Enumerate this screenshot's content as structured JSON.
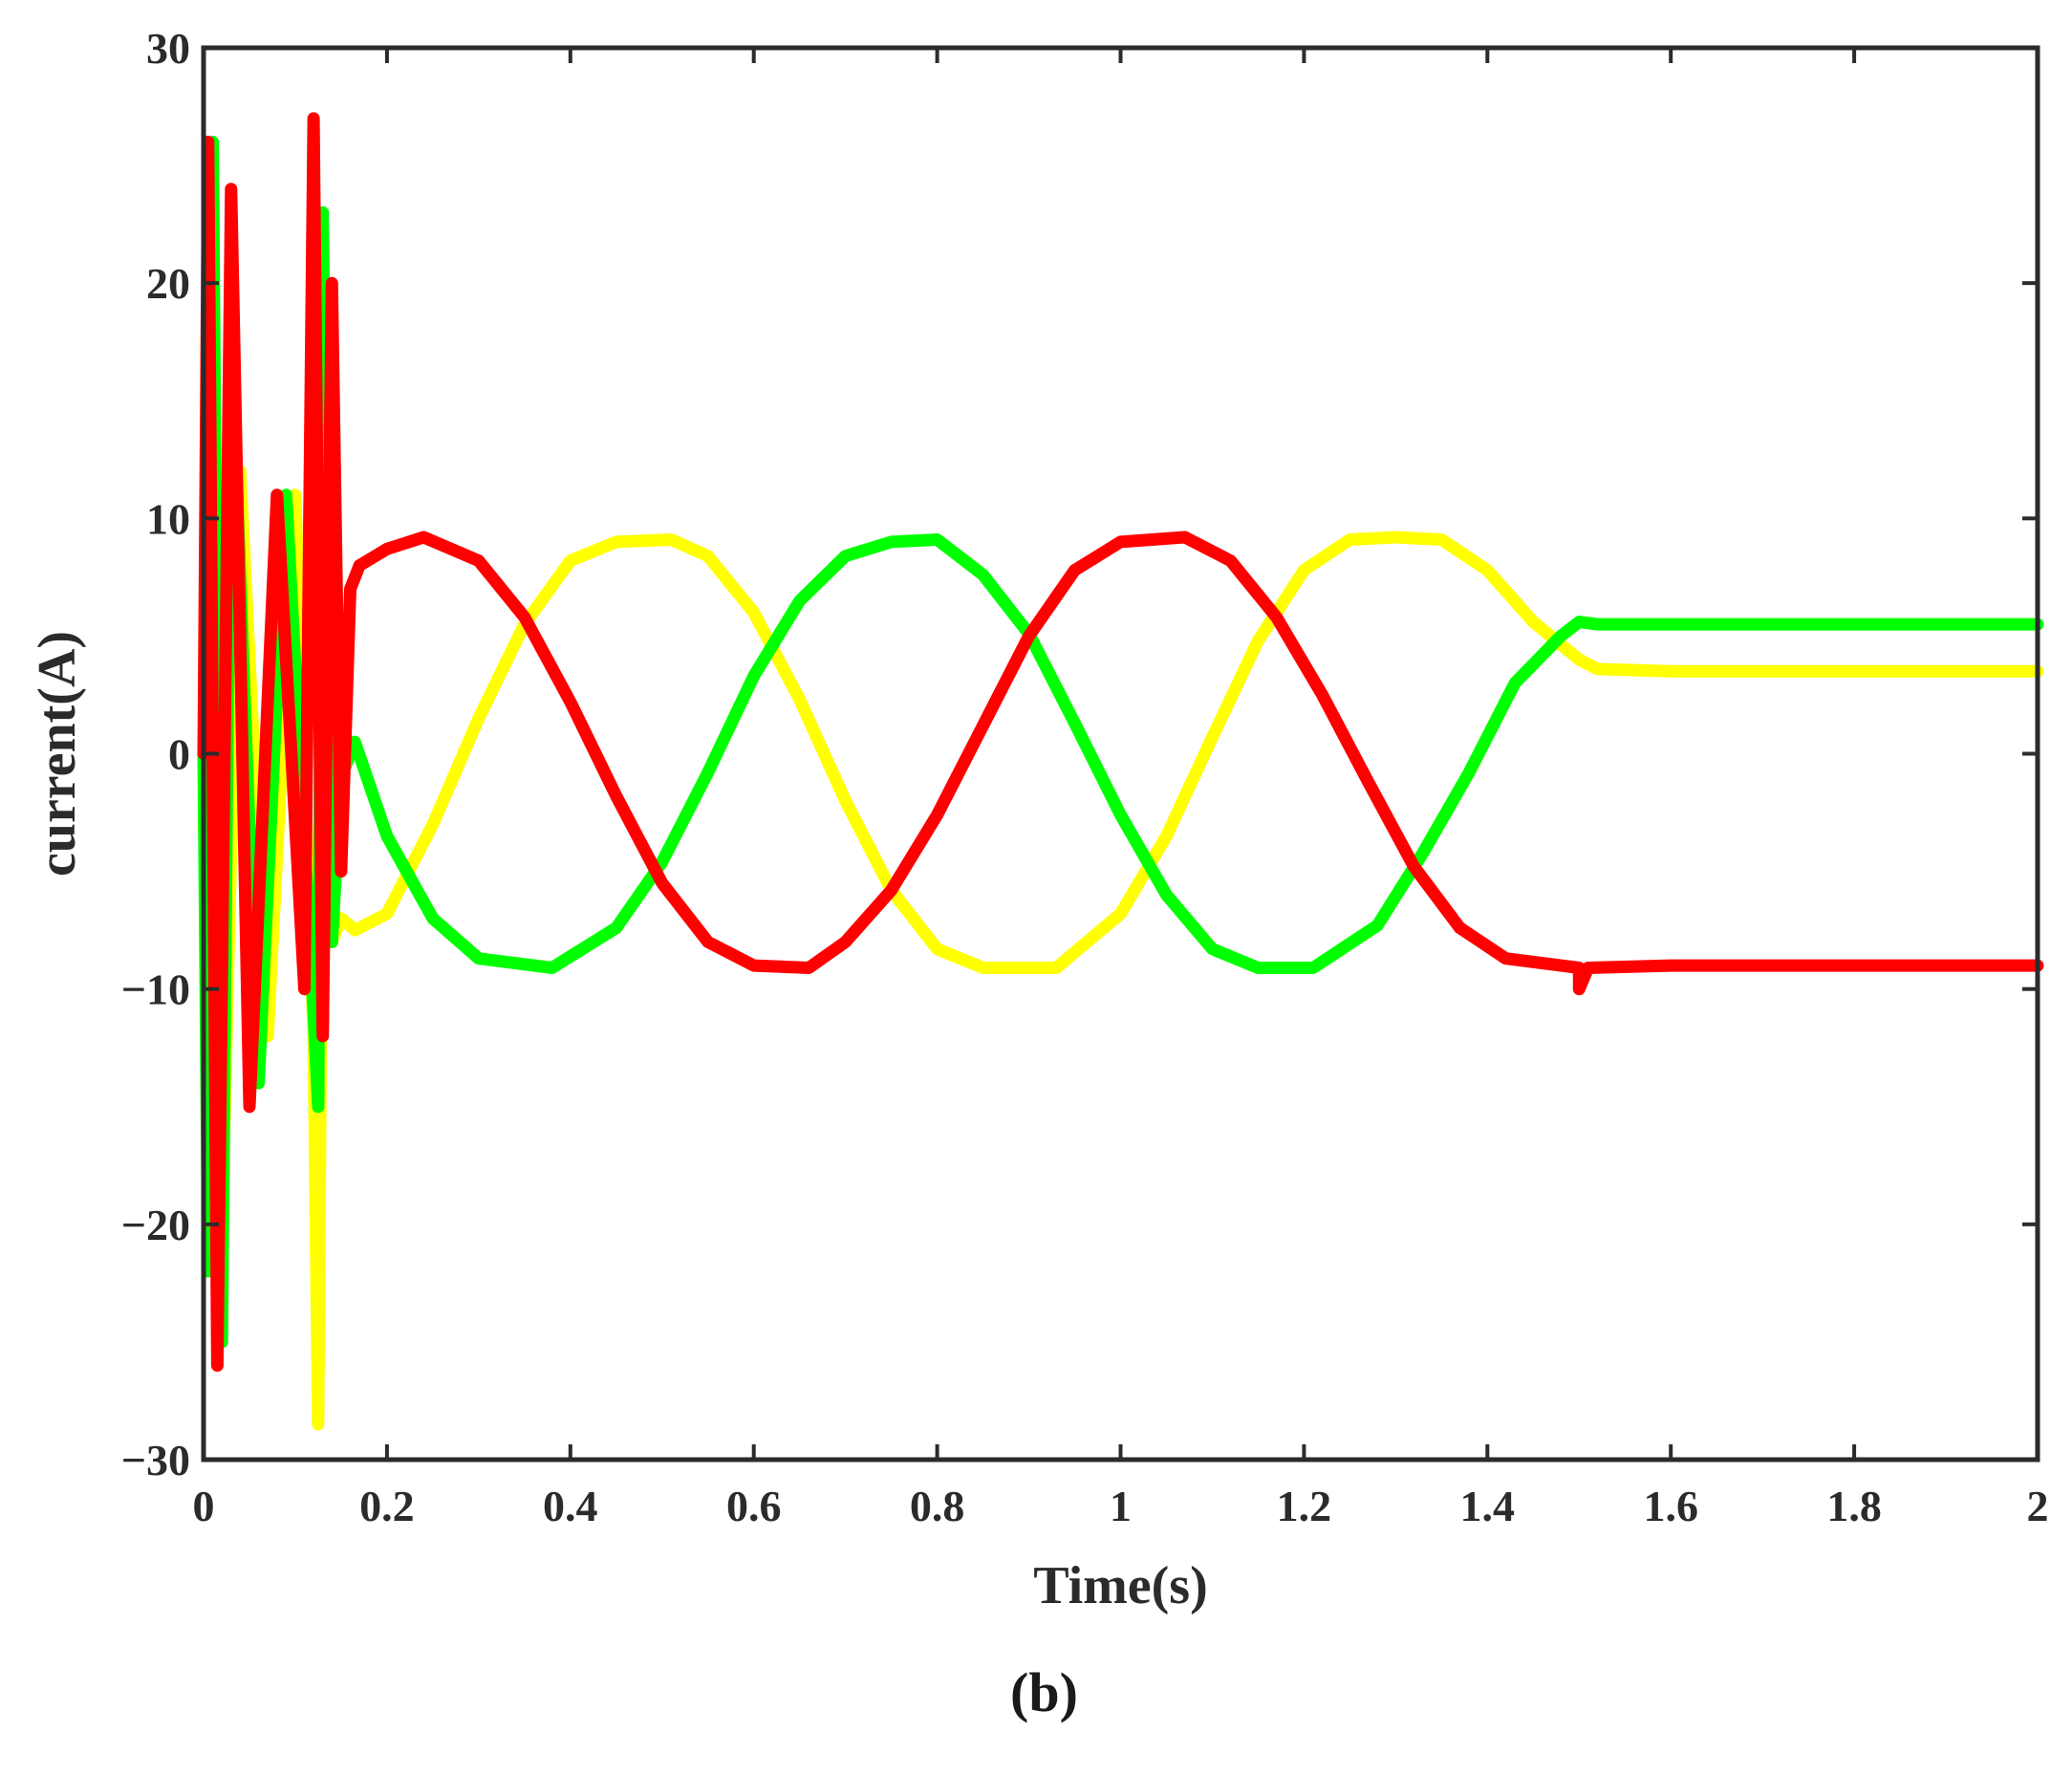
{
  "chart_data": {
    "type": "line",
    "xlabel": "Time(s)",
    "ylabel": "current(A)",
    "caption": "(b)",
    "xlim": [
      0,
      2
    ],
    "ylim": [
      -30,
      30
    ],
    "xticks": [
      0,
      0.2,
      0.4,
      0.6,
      0.8,
      1,
      1.2,
      1.4,
      1.6,
      1.8,
      2
    ],
    "xtick_labels": [
      "0",
      "0.2",
      "0.4",
      "0.6",
      "0.8",
      "1",
      "1.2",
      "1.4",
      "1.6",
      "1.8",
      "2"
    ],
    "yticks": [
      -30,
      -20,
      -10,
      0,
      10,
      20,
      30
    ],
    "ytick_labels": [
      "−30",
      "−20",
      "−10",
      "0",
      "10",
      "20",
      "30"
    ],
    "grid": false,
    "legend": "none",
    "series": [
      {
        "color": "#ffff00",
        "points": [
          [
            0.005,
            10
          ],
          [
            0.02,
            -20
          ],
          [
            0.04,
            12
          ],
          [
            0.07,
            -12
          ],
          [
            0.1,
            11
          ],
          [
            0.12,
            -12
          ],
          [
            0.125,
            -28.5
          ],
          [
            0.13,
            0
          ],
          [
            0.135,
            20
          ],
          [
            0.14,
            -8
          ],
          [
            0.15,
            -7
          ],
          [
            0.165,
            -7.5
          ],
          [
            0.2,
            -6.8
          ],
          [
            0.25,
            -3
          ],
          [
            0.3,
            1.5
          ],
          [
            0.35,
            5.5
          ],
          [
            0.4,
            8.2
          ],
          [
            0.45,
            9
          ],
          [
            0.51,
            9.1
          ],
          [
            0.55,
            8.4
          ],
          [
            0.6,
            6
          ],
          [
            0.65,
            2.3
          ],
          [
            0.7,
            -2
          ],
          [
            0.75,
            -5.8
          ],
          [
            0.8,
            -8.3
          ],
          [
            0.85,
            -9.1
          ],
          [
            0.93,
            -9.1
          ],
          [
            1.0,
            -6.8
          ],
          [
            1.05,
            -3.5
          ],
          [
            1.1,
            0.7
          ],
          [
            1.15,
            4.8
          ],
          [
            1.2,
            7.8
          ],
          [
            1.25,
            9.1
          ],
          [
            1.3,
            9.2
          ],
          [
            1.35,
            9.1
          ],
          [
            1.4,
            7.8
          ],
          [
            1.45,
            5.6
          ],
          [
            1.5,
            4
          ],
          [
            1.52,
            3.6
          ],
          [
            1.6,
            3.5
          ],
          [
            2.0,
            3.5
          ]
        ]
      },
      {
        "color": "#00ff00",
        "points": [
          [
            0,
            0
          ],
          [
            0.005,
            -22
          ],
          [
            0.01,
            26
          ],
          [
            0.02,
            -25
          ],
          [
            0.03,
            18
          ],
          [
            0.06,
            -14
          ],
          [
            0.09,
            11
          ],
          [
            0.12,
            -11
          ],
          [
            0.125,
            -15
          ],
          [
            0.13,
            23
          ],
          [
            0.135,
            5
          ],
          [
            0.14,
            -8
          ],
          [
            0.15,
            -1
          ],
          [
            0.165,
            0.5
          ],
          [
            0.2,
            -3.5
          ],
          [
            0.25,
            -7
          ],
          [
            0.3,
            -8.7
          ],
          [
            0.38,
            -9.1
          ],
          [
            0.45,
            -7.4
          ],
          [
            0.5,
            -4.6
          ],
          [
            0.55,
            -0.8
          ],
          [
            0.6,
            3.3
          ],
          [
            0.65,
            6.5
          ],
          [
            0.7,
            8.4
          ],
          [
            0.75,
            9
          ],
          [
            0.8,
            9.1
          ],
          [
            0.85,
            7.6
          ],
          [
            0.9,
            5.1
          ],
          [
            0.95,
            1.3
          ],
          [
            1.0,
            -2.6
          ],
          [
            1.05,
            -6
          ],
          [
            1.1,
            -8.3
          ],
          [
            1.15,
            -9.1
          ],
          [
            1.21,
            -9.1
          ],
          [
            1.28,
            -7.3
          ],
          [
            1.33,
            -4.2
          ],
          [
            1.38,
            -0.8
          ],
          [
            1.43,
            3
          ],
          [
            1.48,
            5
          ],
          [
            1.5,
            5.6
          ],
          [
            1.52,
            5.5
          ],
          [
            1.6,
            5.5
          ],
          [
            2.0,
            5.5
          ]
        ]
      },
      {
        "color": "#ff0000",
        "points": [
          [
            0,
            0
          ],
          [
            0.005,
            26
          ],
          [
            0.015,
            -26
          ],
          [
            0.03,
            24
          ],
          [
            0.05,
            -15
          ],
          [
            0.08,
            11
          ],
          [
            0.11,
            -10
          ],
          [
            0.12,
            27
          ],
          [
            0.13,
            -12
          ],
          [
            0.14,
            20
          ],
          [
            0.15,
            -5
          ],
          [
            0.16,
            7
          ],
          [
            0.17,
            8
          ],
          [
            0.2,
            8.7
          ],
          [
            0.24,
            9.2
          ],
          [
            0.3,
            8.2
          ],
          [
            0.35,
            5.8
          ],
          [
            0.4,
            2.2
          ],
          [
            0.45,
            -1.8
          ],
          [
            0.5,
            -5.5
          ],
          [
            0.55,
            -8
          ],
          [
            0.6,
            -9
          ],
          [
            0.66,
            -9.1
          ],
          [
            0.7,
            -8
          ],
          [
            0.75,
            -5.8
          ],
          [
            0.8,
            -2.6
          ],
          [
            0.85,
            1.2
          ],
          [
            0.9,
            5
          ],
          [
            0.95,
            7.8
          ],
          [
            1.0,
            9
          ],
          [
            1.07,
            9.2
          ],
          [
            1.12,
            8.2
          ],
          [
            1.17,
            5.8
          ],
          [
            1.22,
            2.5
          ],
          [
            1.27,
            -1.2
          ],
          [
            1.32,
            -4.8
          ],
          [
            1.37,
            -7.4
          ],
          [
            1.42,
            -8.7
          ],
          [
            1.5,
            -9.1
          ],
          [
            1.5,
            -10
          ],
          [
            1.51,
            -9.1
          ],
          [
            1.6,
            -9
          ],
          [
            2.0,
            -9
          ]
        ]
      }
    ]
  }
}
